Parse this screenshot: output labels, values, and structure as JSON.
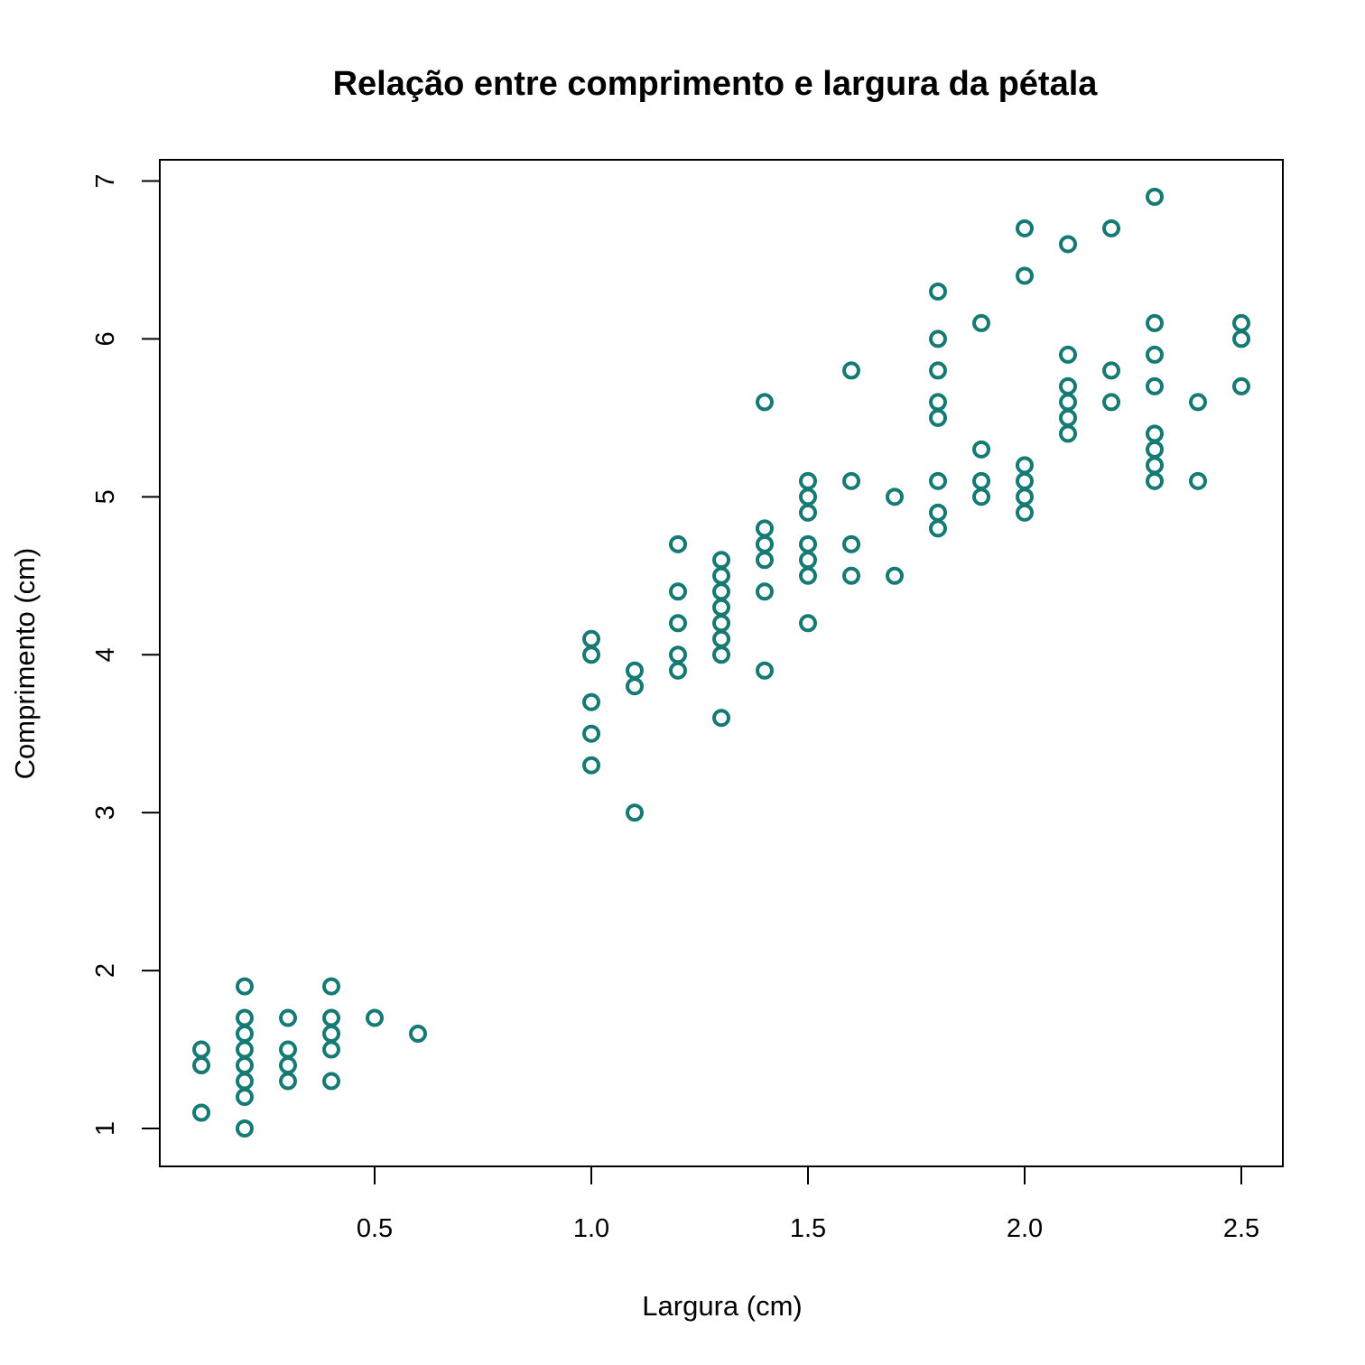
{
  "chart_data": {
    "type": "scatter",
    "title": "Relação entre comprimento e largura da pétala",
    "xlabel": "Largura (cm)",
    "ylabel": "Comprimento (cm)",
    "xlim": [
      0.1,
      2.5
    ],
    "ylim": [
      1.0,
      6.9
    ],
    "xticks": [
      0.5,
      1.0,
      1.5,
      2.0,
      2.5
    ],
    "xtick_labels": [
      "0.5",
      "1.0",
      "1.5",
      "2.0",
      "2.5"
    ],
    "yticks": [
      1,
      2,
      3,
      4,
      5,
      6,
      7
    ],
    "ytick_labels": [
      "1",
      "2",
      "3",
      "4",
      "5",
      "6",
      "7"
    ],
    "grid": false,
    "marker": "open-circle",
    "point_color": "#167a74",
    "points": [
      [
        0.1,
        1.5
      ],
      [
        0.1,
        1.4
      ],
      [
        0.1,
        1.1
      ],
      [
        0.2,
        1.9
      ],
      [
        0.2,
        1.7
      ],
      [
        0.2,
        1.6
      ],
      [
        0.2,
        1.5
      ],
      [
        0.2,
        1.4
      ],
      [
        0.2,
        1.3
      ],
      [
        0.2,
        1.2
      ],
      [
        0.2,
        1.0
      ],
      [
        0.3,
        1.7
      ],
      [
        0.3,
        1.5
      ],
      [
        0.3,
        1.4
      ],
      [
        0.3,
        1.3
      ],
      [
        0.4,
        1.9
      ],
      [
        0.4,
        1.7
      ],
      [
        0.4,
        1.6
      ],
      [
        0.4,
        1.5
      ],
      [
        0.4,
        1.3
      ],
      [
        0.5,
        1.7
      ],
      [
        0.6,
        1.6
      ],
      [
        1.0,
        4.1
      ],
      [
        1.0,
        4.0
      ],
      [
        1.0,
        3.7
      ],
      [
        1.0,
        3.5
      ],
      [
        1.0,
        3.3
      ],
      [
        1.1,
        3.9
      ],
      [
        1.1,
        3.8
      ],
      [
        1.1,
        3.0
      ],
      [
        1.2,
        4.7
      ],
      [
        1.2,
        4.4
      ],
      [
        1.2,
        4.2
      ],
      [
        1.2,
        4.0
      ],
      [
        1.2,
        3.9
      ],
      [
        1.3,
        4.6
      ],
      [
        1.3,
        4.5
      ],
      [
        1.3,
        4.4
      ],
      [
        1.3,
        4.3
      ],
      [
        1.3,
        4.2
      ],
      [
        1.3,
        4.1
      ],
      [
        1.3,
        4.0
      ],
      [
        1.3,
        3.6
      ],
      [
        1.4,
        5.6
      ],
      [
        1.4,
        4.8
      ],
      [
        1.4,
        4.7
      ],
      [
        1.4,
        4.6
      ],
      [
        1.4,
        4.4
      ],
      [
        1.4,
        3.9
      ],
      [
        1.5,
        5.1
      ],
      [
        1.5,
        5.0
      ],
      [
        1.5,
        4.9
      ],
      [
        1.5,
        4.7
      ],
      [
        1.5,
        4.6
      ],
      [
        1.5,
        4.5
      ],
      [
        1.5,
        4.2
      ],
      [
        1.6,
        5.8
      ],
      [
        1.6,
        5.1
      ],
      [
        1.6,
        4.7
      ],
      [
        1.6,
        4.5
      ],
      [
        1.7,
        5.0
      ],
      [
        1.7,
        4.5
      ],
      [
        1.8,
        6.3
      ],
      [
        1.8,
        6.0
      ],
      [
        1.8,
        5.8
      ],
      [
        1.8,
        5.6
      ],
      [
        1.8,
        5.5
      ],
      [
        1.8,
        5.1
      ],
      [
        1.8,
        4.9
      ],
      [
        1.8,
        4.8
      ],
      [
        1.9,
        6.1
      ],
      [
        1.9,
        5.3
      ],
      [
        1.9,
        5.1
      ],
      [
        1.9,
        5.0
      ],
      [
        2.0,
        6.7
      ],
      [
        2.0,
        6.4
      ],
      [
        2.0,
        5.2
      ],
      [
        2.0,
        5.1
      ],
      [
        2.0,
        5.0
      ],
      [
        2.0,
        4.9
      ],
      [
        2.1,
        6.6
      ],
      [
        2.1,
        5.9
      ],
      [
        2.1,
        5.7
      ],
      [
        2.1,
        5.6
      ],
      [
        2.1,
        5.5
      ],
      [
        2.1,
        5.4
      ],
      [
        2.2,
        6.7
      ],
      [
        2.2,
        5.8
      ],
      [
        2.2,
        5.6
      ],
      [
        2.3,
        6.9
      ],
      [
        2.3,
        6.1
      ],
      [
        2.3,
        5.9
      ],
      [
        2.3,
        5.7
      ],
      [
        2.3,
        5.4
      ],
      [
        2.3,
        5.3
      ],
      [
        2.3,
        5.2
      ],
      [
        2.3,
        5.1
      ],
      [
        2.4,
        5.6
      ],
      [
        2.4,
        5.1
      ],
      [
        2.5,
        6.1
      ],
      [
        2.5,
        6.0
      ],
      [
        2.5,
        5.7
      ]
    ]
  }
}
